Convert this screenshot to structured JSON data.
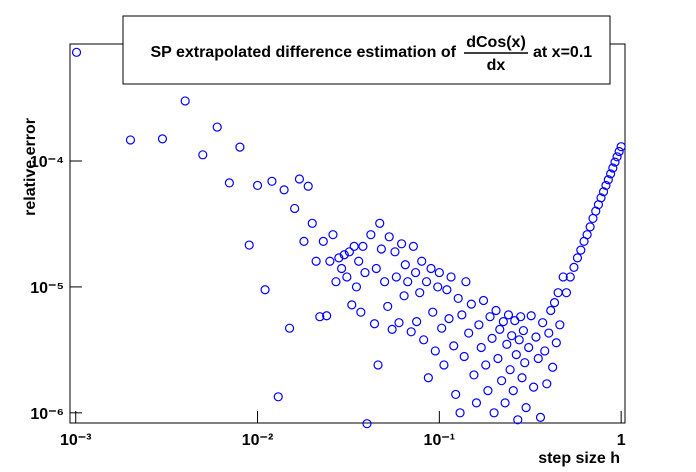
{
  "chart_data": {
    "type": "scatter",
    "title": "SP extrapolated difference estimation of",
    "title_fraction": {
      "numerator": "dCos(x)",
      "denominator": "dx"
    },
    "title_suffix": "at x=0.1",
    "x_label": "step size h",
    "y_label": "relative error",
    "xscale": "log",
    "yscale": "log",
    "color": "#0000ff",
    "xlim": [
      0.00093,
      1.05
    ],
    "ylim": [
      8.3e-07,
      0.00085
    ],
    "xticks": [
      {
        "value": 0.001,
        "label": "10⁻³"
      },
      {
        "value": 0.01,
        "label": "10⁻²"
      },
      {
        "value": 0.1,
        "label": "10⁻¹"
      },
      1
    ],
    "yticks": [
      {
        "value": 1e-06,
        "label": "10⁻⁶"
      },
      {
        "value": 1e-05,
        "label": "10⁻⁵"
      },
      {
        "value": 0.0001,
        "label": "10⁻⁴"
      }
    ],
    "x": [
      0.00101,
      0.002,
      0.003,
      0.004,
      0.005,
      0.006,
      0.007,
      0.008,
      0.009,
      0.01,
      0.011,
      0.012,
      0.013,
      0.014,
      0.015,
      0.016,
      0.017,
      0.018,
      0.019,
      0.02,
      0.021,
      0.022,
      0.023,
      0.024,
      0.025,
      0.026,
      0.027,
      0.028,
      0.029,
      0.03,
      0.031,
      0.032,
      0.033,
      0.034,
      0.035,
      0.036,
      0.037,
      0.038,
      0.039,
      0.04,
      0.042,
      0.044,
      0.045,
      0.046,
      0.047,
      0.048,
      0.05,
      0.052,
      0.053,
      0.055,
      0.057,
      0.058,
      0.06,
      0.062,
      0.064,
      0.065,
      0.067,
      0.07,
      0.072,
      0.074,
      0.075,
      0.078,
      0.08,
      0.082,
      0.085,
      0.087,
      0.09,
      0.092,
      0.095,
      0.098,
      0.1,
      0.103,
      0.106,
      0.11,
      0.113,
      0.116,
      0.12,
      0.123,
      0.127,
      0.13,
      0.133,
      0.137,
      0.14,
      0.145,
      0.15,
      0.155,
      0.16,
      0.165,
      0.17,
      0.175,
      0.18,
      0.185,
      0.19,
      0.195,
      0.2,
      0.205,
      0.21,
      0.215,
      0.22,
      0.225,
      0.23,
      0.235,
      0.24,
      0.245,
      0.25,
      0.255,
      0.26,
      0.265,
      0.27,
      0.275,
      0.28,
      0.285,
      0.29,
      0.295,
      0.3,
      0.31,
      0.32,
      0.33,
      0.34,
      0.35,
      0.36,
      0.37,
      0.38,
      0.39,
      0.4,
      0.41,
      0.42,
      0.43,
      0.44,
      0.45,
      0.46,
      0.48,
      0.5,
      0.525,
      0.55,
      0.575,
      0.6,
      0.625,
      0.65,
      0.675,
      0.7,
      0.725,
      0.75,
      0.775,
      0.8,
      0.825,
      0.85,
      0.875,
      0.9,
      0.925,
      0.95,
      0.975,
      1.0
    ],
    "values": [
      0.00073,
      0.000147,
      0.00015,
      0.0003,
      0.000112,
      0.000186,
      6.7e-05,
      0.000129,
      2.15e-05,
      6.4e-05,
      9.5e-06,
      6.9e-05,
      1.34e-06,
      5.9e-05,
      4.7e-06,
      4.2e-05,
      7.2e-05,
      2.3e-05,
      6.3e-05,
      3.2e-05,
      1.6e-05,
      5.8e-06,
      2.3e-05,
      5.9e-06,
      1.6e-05,
      2.6e-05,
      1.1e-05,
      1.7e-05,
      1.4e-05,
      1.8e-05,
      1.2e-05,
      1.9e-05,
      7.2e-06,
      2.1e-05,
      1e-05,
      1.6e-05,
      6.3e-06,
      2.1e-05,
      1.3e-05,
      8.2e-07,
      2.6e-05,
      5.1e-06,
      1.4e-05,
      2.4e-06,
      3.2e-05,
      2e-05,
      1.1e-05,
      7e-06,
      2.5e-05,
      4.6e-06,
      1.9e-05,
      1.2e-05,
      5.2e-06,
      2.2e-05,
      8.5e-06,
      1.5e-05,
      1.1e-05,
      4.4e-06,
      2.1e-05,
      1.3e-05,
      5.3e-06,
      9e-06,
      1.6e-05,
      3.8e-06,
      1.1e-05,
      1.9e-06,
      1.4e-05,
      6.3e-06,
      3.1e-06,
      1e-05,
      1.3e-05,
      4.7e-06,
      2.4e-06,
      9.5e-06,
      5.6e-06,
      1.2e-05,
      3.4e-06,
      1.4e-06,
      8.1e-06,
      1e-06,
      6e-06,
      2.8e-06,
      1.1e-05,
      4.3e-06,
      7.3e-06,
      2e-06,
      1.2e-06,
      5e-06,
      3.3e-06,
      7.8e-06,
      2.4e-06,
      1.5e-06,
      5.8e-06,
      3.9e-06,
      1e-06,
      6.5e-06,
      2.7e-06,
      4.6e-06,
      1.8e-06,
      5.3e-06,
      1.2e-06,
      3.5e-06,
      6e-06,
      2.2e-06,
      4.1e-06,
      1.5e-06,
      5.4e-06,
      2.9e-06,
      8.8e-07,
      3.8e-06,
      5.8e-06,
      1.9e-06,
      4.5e-06,
      2.5e-06,
      1.1e-06,
      3.3e-06,
      5.9e-06,
      1.6e-06,
      4e-06,
      2.7e-06,
      9.2e-07,
      5.2e-06,
      3.1e-06,
      1.7e-06,
      4.3e-06,
      6.5e-06,
      2.3e-06,
      7.5e-06,
      3.6e-06,
      9e-06,
      5e-06,
      1.2e-05,
      9e-06,
      1.2e-05,
      1.43e-05,
      1.7e-05,
      1.96e-05,
      2.3e-05,
      2.6e-05,
      3e-05,
      3.5e-05,
      4e-05,
      4.5e-05,
      5.1e-05,
      5.7e-05,
      6.4e-05,
      7.1e-05,
      7.9e-05,
      8.8e-05,
      9.8e-05,
      0.000108,
      0.000119,
      0.00013
    ]
  }
}
